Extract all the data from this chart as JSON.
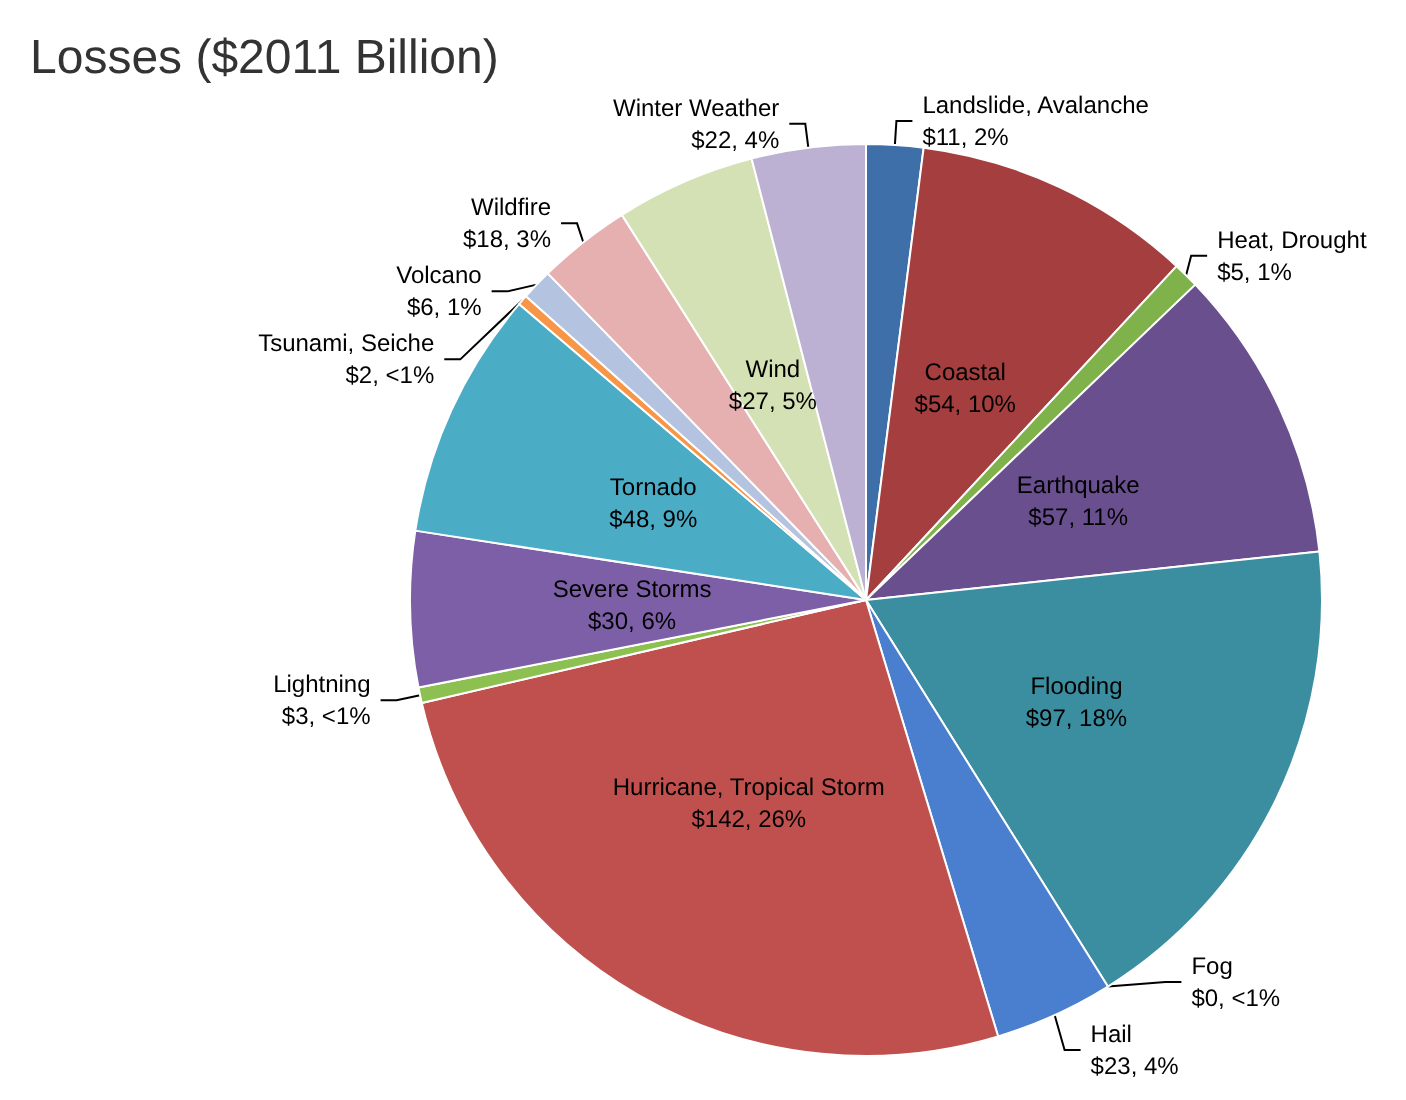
{
  "chart_data": {
    "type": "pie",
    "title": "Losses ($2011 Billion)",
    "categories": [
      "Landslide, Avalanche",
      "Coastal",
      "Heat, Drought",
      "Earthquake",
      "Flooding",
      "Fog",
      "Hail",
      "Hurricane, Tropical Storm",
      "Lightning",
      "Severe Storms",
      "Tornado",
      "Tsunami, Seiche",
      "Volcano",
      "Wildfire",
      "Wind",
      "Winter Weather"
    ],
    "values": [
      11,
      54,
      5,
      57,
      97,
      0,
      23,
      142,
      3,
      30,
      48,
      2,
      6,
      18,
      27,
      22
    ],
    "value_labels": [
      "$11, 2%",
      "$54, 10%",
      "$5, 1%",
      "$57, 11%",
      "$97, 18%",
      "$0, <1%",
      "$23, 4%",
      "$142, 26%",
      "$3, <1%",
      "$30, 6%",
      "$48, 9%",
      "$2, <1%",
      "$6, 1%",
      "$18, 3%",
      "$27, 5%",
      "$22, 4%"
    ],
    "colors": [
      "#3f6fa8",
      "#a53e3e",
      "#7fb24a",
      "#6a4f8e",
      "#3b8da0",
      "#4a7fcf",
      "#4a7fcf",
      "#c0504d",
      "#8cc152",
      "#7d5fa8",
      "#4bacc6",
      "#f79646",
      "#b4c3e0",
      "#e6b0b0",
      "#d4e1b4",
      "#bcb1d3"
    ]
  }
}
